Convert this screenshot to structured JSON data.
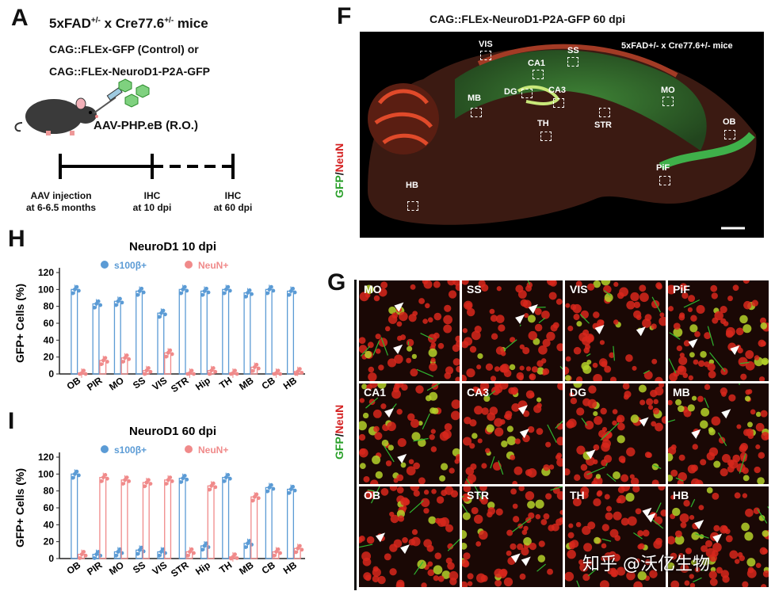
{
  "panelA": {
    "letter": "A",
    "title": "5xFAD",
    "title_sup1": "+/-",
    "title_mid": " x Cre77.6",
    "title_sup2": "+/-",
    "title_end": " mice",
    "line2": "CAG::FLEx-GFP (Control) or",
    "line3": "CAG::FLEx-NeuroD1-P2A-GFP",
    "virus": "AAV-PHP.eB (R.O.)",
    "timeline": [
      {
        "l1": "AAV injection",
        "l2": "at 6-6.5 months"
      },
      {
        "l1": "IHC",
        "l2": "at 10 dpi"
      },
      {
        "l1": "IHC",
        "l2": "at 60 dpi"
      }
    ]
  },
  "panelF": {
    "letter": "F",
    "title": "CAG::FLEx-NeuroD1-P2A-GFP 60 dpi",
    "mouse": "5xFAD+/- x Cre77.6+/- mice",
    "stain_green": "GFP",
    "stain_sep": "/",
    "stain_red": "NeuN",
    "regions": [
      "VIS",
      "SS",
      "CA1",
      "MB",
      "DG",
      "CA3",
      "MO",
      "TH",
      "STR",
      "OB",
      "PiF",
      "HB"
    ]
  },
  "panelG": {
    "letter": "G",
    "stain_green": "GFP",
    "stain_sep": "/",
    "stain_red": "NeuN",
    "tiles": [
      "MO",
      "SS",
      "VIS",
      "PiF",
      "CA1",
      "CA3",
      "DG",
      "MB",
      "OB",
      "STR",
      "TH",
      "HB"
    ],
    "watermark": "知乎 @沃亿生物"
  },
  "chart_data": [
    {
      "type": "bar",
      "panel": "H",
      "title": "NeuroD1 10 dpi",
      "ylabel": "GFP+ Cells (%)",
      "ylim": [
        0,
        120
      ],
      "yticks": [
        0,
        20,
        40,
        60,
        80,
        100,
        120
      ],
      "categories": [
        "OB",
        "PIR",
        "MO",
        "SS",
        "VIS",
        "STR",
        "Hip",
        "TH",
        "MB",
        "CB",
        "HB"
      ],
      "series": [
        {
          "name": "s100β+",
          "color": "#5b9bd5",
          "values": [
            100,
            83,
            86,
            98,
            72,
            100,
            98,
            100,
            96,
            100,
            98
          ]
        },
        {
          "name": "NeuN+",
          "color": "#f08a8a",
          "values": [
            1,
            16,
            19,
            4,
            25,
            1,
            4,
            1,
            8,
            1,
            3
          ]
        }
      ]
    },
    {
      "type": "bar",
      "panel": "I",
      "title": "NeuroD1 60 dpi",
      "ylabel": "GFP+ Cells (%)",
      "ylim": [
        0,
        120
      ],
      "yticks": [
        0,
        20,
        40,
        60,
        80,
        100,
        120
      ],
      "categories": [
        "OB",
        "PIR",
        "MO",
        "SS",
        "VIS",
        "STR",
        "Hip",
        "TH",
        "MB",
        "CB",
        "HB"
      ],
      "series": [
        {
          "name": "s100β+",
          "color": "#5b9bd5",
          "values": [
            100,
            5,
            8,
            10,
            8,
            95,
            15,
            96,
            18,
            84,
            82
          ]
        },
        {
          "name": "NeuN+",
          "color": "#f08a8a",
          "values": [
            5,
            96,
            93,
            90,
            93,
            8,
            86,
            2,
            73,
            8,
            12
          ]
        }
      ]
    }
  ]
}
